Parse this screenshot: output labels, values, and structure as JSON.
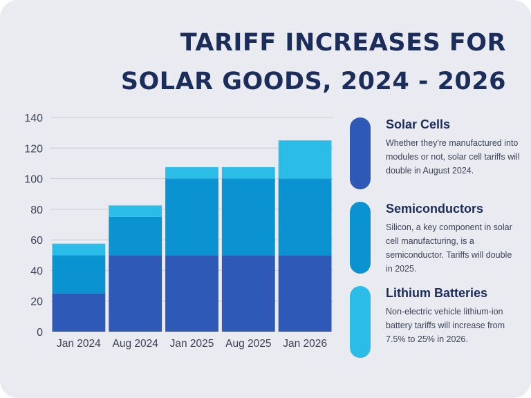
{
  "title": {
    "line1": "TARIFF INCREASES FOR",
    "line2": "SOLAR GOODS, 2024 - 2026"
  },
  "colors": {
    "background": "#e9ebf0",
    "title": "#1b2d5b",
    "solar_cells": "#2f59b6",
    "semiconductors": "#0b92d0",
    "lithium_batteries": "#2bbde8",
    "grid": "#c9ccd5"
  },
  "legend": [
    {
      "name": "Solar Cells",
      "color_key": "solar_cells",
      "description": "Whether they're manufactured into modules or not, solar cell tariffs will double in August 2024."
    },
    {
      "name": "Semiconductors",
      "color_key": "semiconductors",
      "description": "Silicon, a key component in solar cell manufacturing, is a semiconductor. Tariffs will double in 2025."
    },
    {
      "name": "Lithium Batteries",
      "color_key": "lithium_batteries",
      "description": "Non-electric vehicle lithium-ion battery tariffs will increase from 7.5% to 25% in 2026."
    }
  ],
  "chart_data": {
    "type": "bar",
    "stacked": true,
    "title": "TARIFF INCREASES FOR SOLAR GOODS, 2024 - 2026",
    "xlabel": "",
    "ylabel": "",
    "ylim": [
      0,
      140
    ],
    "yticks": [
      0,
      20,
      40,
      60,
      80,
      100,
      120,
      140
    ],
    "grid": true,
    "categories": [
      "Jan 2024",
      "Aug 2024",
      "Jan 2025",
      "Aug 2025",
      "Jan 2026"
    ],
    "series": [
      {
        "name": "Solar Cells",
        "color_key": "solar_cells",
        "values": [
          25,
          50,
          50,
          50,
          50
        ]
      },
      {
        "name": "Semiconductors",
        "color_key": "semiconductors",
        "values": [
          25,
          25,
          50,
          50,
          50
        ]
      },
      {
        "name": "Lithium Batteries",
        "color_key": "lithium_batteries",
        "values": [
          7.5,
          7.5,
          7.5,
          7.5,
          25
        ]
      }
    ]
  }
}
